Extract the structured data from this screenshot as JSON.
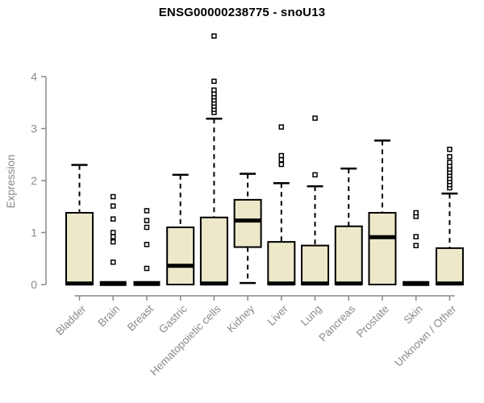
{
  "chart_data": {
    "type": "boxplot",
    "title": "ENSG00000238775 - snoU13",
    "ylabel": "Expression",
    "xlabel": "",
    "ylim": [
      0,
      4.8
    ],
    "yticks": [
      0,
      1,
      2,
      3,
      4
    ],
    "grid": false,
    "legend": "none",
    "categories": [
      "Bladder",
      "Brain",
      "Breast",
      "Gastric",
      "Hematopoietic cells",
      "Kidney",
      "Liver",
      "Lung",
      "Pancreas",
      "Prostate",
      "Skin",
      "Unknown / Other"
    ],
    "series": [
      {
        "category": "Bladder",
        "low": 0,
        "q1": 0,
        "median": 0.02,
        "q3": 1.38,
        "high": 2.3,
        "outliers": []
      },
      {
        "category": "Brain",
        "low": 0,
        "q1": 0,
        "median": 0.02,
        "q3": 0.02,
        "high": 0.02,
        "outliers": [
          0.43,
          0.82,
          0.92,
          1.0,
          1.26,
          1.51,
          1.69
        ]
      },
      {
        "category": "Breast",
        "low": 0,
        "q1": 0,
        "median": 0.02,
        "q3": 0.02,
        "high": 0.02,
        "outliers": [
          0.31,
          0.77,
          1.1,
          1.23,
          1.42
        ]
      },
      {
        "category": "Gastric",
        "low": 0,
        "q1": 0,
        "median": 0.36,
        "q3": 1.1,
        "high": 2.11,
        "outliers": []
      },
      {
        "category": "Hematopoietic cells",
        "low": 0,
        "q1": 0,
        "median": 0.02,
        "q3": 1.29,
        "high": 3.19,
        "outliers": [
          3.31,
          3.37,
          3.43,
          3.49,
          3.55,
          3.61,
          3.67,
          3.74,
          3.91,
          4.78
        ]
      },
      {
        "category": "Kidney",
        "low": 0.03,
        "q1": 0.72,
        "median": 1.23,
        "q3": 1.63,
        "high": 2.13,
        "outliers": []
      },
      {
        "category": "Liver",
        "low": 0,
        "q1": 0,
        "median": 0.02,
        "q3": 0.82,
        "high": 1.95,
        "outliers": [
          2.31,
          2.4,
          2.48,
          3.03
        ]
      },
      {
        "category": "Lung",
        "low": 0,
        "q1": 0,
        "median": 0.02,
        "q3": 0.75,
        "high": 1.89,
        "outliers": [
          2.11,
          3.2
        ]
      },
      {
        "category": "Pancreas",
        "low": 0,
        "q1": 0,
        "median": 0.02,
        "q3": 1.12,
        "high": 2.23,
        "outliers": []
      },
      {
        "category": "Prostate",
        "low": 0,
        "q1": 0,
        "median": 0.91,
        "q3": 1.38,
        "high": 2.77,
        "outliers": []
      },
      {
        "category": "Skin",
        "low": 0,
        "q1": 0,
        "median": 0.02,
        "q3": 0.02,
        "high": 0.02,
        "outliers": [
          0.75,
          0.92,
          1.31,
          1.38
        ]
      },
      {
        "category": "Unknown / Other",
        "low": 0,
        "q1": 0,
        "median": 0.02,
        "q3": 0.7,
        "high": 1.75,
        "outliers": [
          1.86,
          1.92,
          1.98,
          2.04,
          2.1,
          2.16,
          2.22,
          2.28,
          2.35,
          2.46,
          2.6
        ]
      }
    ],
    "colors": {
      "box_fill": "#EDE8C9",
      "box_stroke": "#000000",
      "median": "#000000",
      "whisker": "#000000",
      "outlier_fill": "#ffffff",
      "outlier_stroke": "#000000",
      "axis": "#8a8a8a",
      "tick_label": "#8a8a8a",
      "title": "#000000",
      "background": "#ffffff"
    }
  }
}
